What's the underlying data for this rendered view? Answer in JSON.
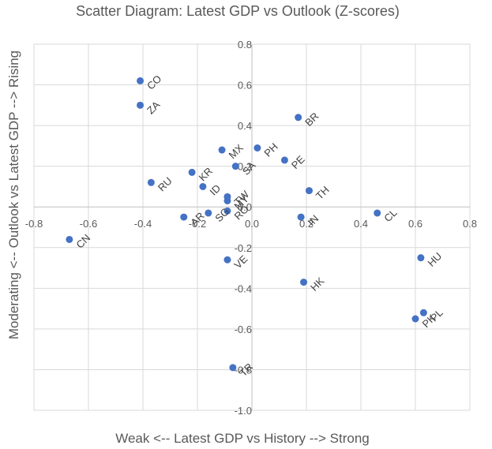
{
  "chart_data": {
    "type": "scatter",
    "title": "Scatter Diagram: Latest GDP vs Outlook (Z-scores)",
    "xlabel": "Weak <-- Latest GDP vs History --> Strong",
    "ylabel": "Moderating <-- Outlook vs Latest GDP --> Rising",
    "xlim": [
      -0.8,
      0.8
    ],
    "ylim": [
      -1.0,
      0.8
    ],
    "x_ticks": [
      -0.8,
      -0.6,
      -0.4,
      -0.2,
      0.0,
      0.2,
      0.4,
      0.6,
      0.8
    ],
    "y_ticks": [
      0.8,
      0.6,
      0.4,
      0.2,
      0.0,
      -0.2,
      -0.4,
      -0.6,
      -0.8,
      -1.0
    ],
    "x_tick_labels": [
      "-0.8",
      "-0.6",
      "-0.4",
      "-0.2",
      "0.0",
      "0.2",
      "0.4",
      "0.6",
      "0.8"
    ],
    "y_tick_labels": [
      "0.8",
      "0.6",
      "0.4",
      "0.2",
      "0.0",
      "-0.2",
      "-0.4",
      "-0.6",
      "-0.8",
      "-1.0"
    ],
    "grid": true,
    "legend": "none",
    "marker_color": "#4472c4",
    "points": [
      {
        "label": "CO",
        "x": -0.41,
        "y": 0.62
      },
      {
        "label": "ZA",
        "x": -0.41,
        "y": 0.5
      },
      {
        "label": "BR",
        "x": 0.17,
        "y": 0.44
      },
      {
        "label": "PH",
        "x": 0.02,
        "y": 0.29
      },
      {
        "label": "PE",
        "x": 0.12,
        "y": 0.23
      },
      {
        "label": "SA",
        "x": -0.06,
        "y": 0.2
      },
      {
        "label": "MX",
        "x": -0.11,
        "y": 0.28
      },
      {
        "label": "KR",
        "x": -0.22,
        "y": 0.17
      },
      {
        "label": "RU",
        "x": -0.37,
        "y": 0.12
      },
      {
        "label": "ID",
        "x": -0.18,
        "y": 0.1
      },
      {
        "label": "TW",
        "x": -0.09,
        "y": 0.05
      },
      {
        "label": "MY",
        "x": -0.09,
        "y": 0.03
      },
      {
        "label": "TH",
        "x": 0.21,
        "y": 0.08
      },
      {
        "label": "RO",
        "x": -0.09,
        "y": -0.02
      },
      {
        "label": "SG",
        "x": -0.16,
        "y": -0.03
      },
      {
        "label": "AR",
        "x": -0.25,
        "y": -0.05
      },
      {
        "label": "IN",
        "x": 0.18,
        "y": -0.05
      },
      {
        "label": "CL",
        "x": 0.46,
        "y": -0.03
      },
      {
        "label": "CN",
        "x": -0.67,
        "y": -0.16
      },
      {
        "label": "VE",
        "x": -0.09,
        "y": -0.26
      },
      {
        "label": "HK",
        "x": 0.19,
        "y": -0.37
      },
      {
        "label": "HU",
        "x": 0.62,
        "y": -0.25
      },
      {
        "label": "PL",
        "x": 0.63,
        "y": -0.52
      },
      {
        "label": "PK",
        "x": 0.6,
        "y": -0.55
      },
      {
        "label": "TR",
        "x": -0.07,
        "y": -0.79
      }
    ],
    "label_offsets": {
      "RU": [
        0.2,
        0.22
      ],
      "SA": [
        0.0,
        0.2
      ]
    }
  }
}
